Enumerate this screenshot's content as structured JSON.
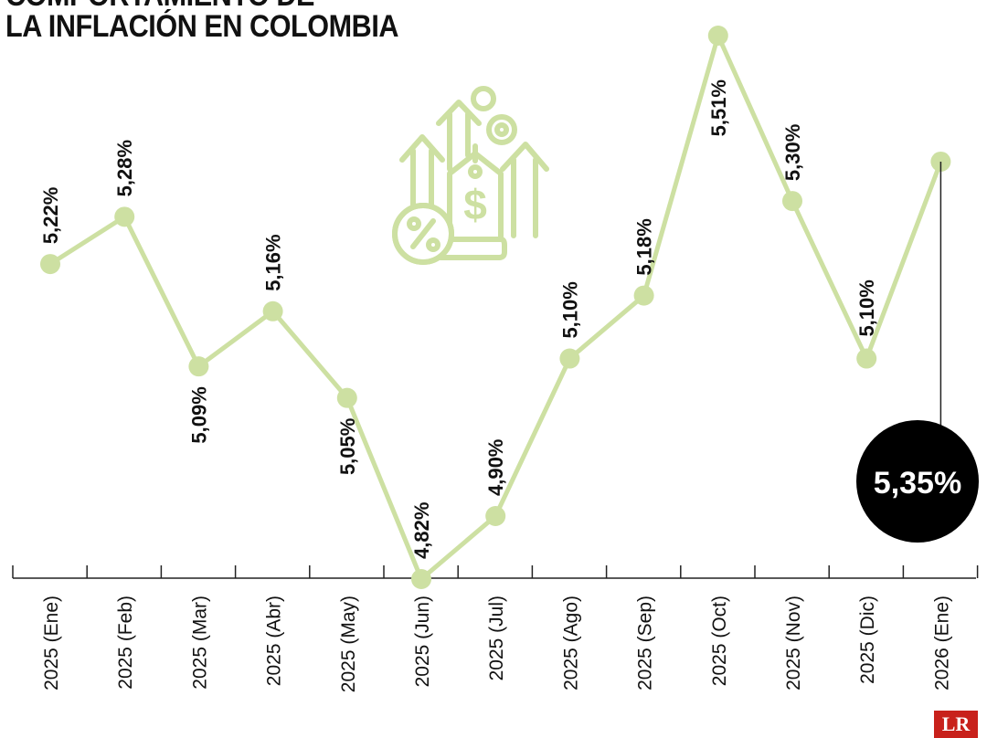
{
  "title": {
    "line1": "COMPORTAMIENTO DE",
    "line2": "LA INFLACIÓN EN COLOMBIA"
  },
  "logo": {
    "text": "LR"
  },
  "icon": "finance-inflation-icon",
  "colors": {
    "line": "#cde0a2",
    "point": "#cde0a2",
    "text": "#111111",
    "badge": "#000000",
    "logo": "#c8211b"
  },
  "chart_data": {
    "type": "line",
    "title": "COMPORTAMIENTO DE LA INFLACIÓN EN COLOMBIA",
    "xlabel": "",
    "ylabel": "",
    "categories": [
      "2025 (Ene)",
      "2025 (Feb)",
      "2025 (Mar)",
      "2025 (Abr)",
      "2025 (May)",
      "2025 (Jun)",
      "2025 (Jul)",
      "2025 (Ago)",
      "2025 (Sep)",
      "2025 (Oct)",
      "2025 (Nov)",
      "2025 (Dic)",
      "2026 (Ene)"
    ],
    "values": [
      5.22,
      5.28,
      5.09,
      5.16,
      5.05,
      4.82,
      4.9,
      5.1,
      5.18,
      5.51,
      5.3,
      5.1,
      5.35
    ],
    "value_labels": [
      "5,22%",
      "5,28%",
      "5,09%",
      "5,16%",
      "5,05%",
      "4,82%",
      "4,90%",
      "5,10%",
      "5,18%",
      "5,51%",
      "5,30%",
      "5,10%",
      "5,35%"
    ],
    "highlight": {
      "index": 12,
      "label": "5,35%"
    },
    "ylim": [
      4.82,
      5.51
    ],
    "grid": false,
    "legend": "none"
  }
}
